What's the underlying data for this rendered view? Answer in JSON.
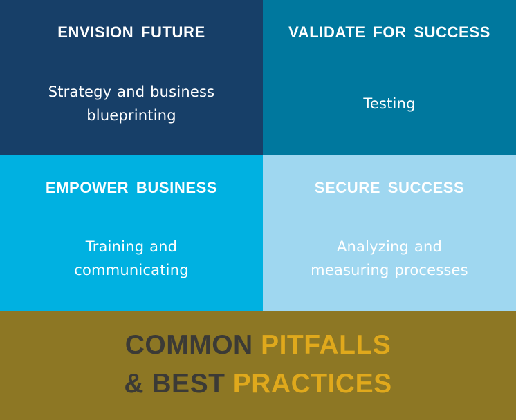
{
  "quadrants": [
    {
      "title": "ENVISION  FUTURE",
      "lines": [
        "Strategy and business",
        "blueprinting"
      ],
      "color": "#173f68"
    },
    {
      "title": "VALIDATE FOR  SUCCESS",
      "lines": [
        "Testing"
      ],
      "color": "#00789e"
    },
    {
      "title": "EMPOWER  BUSINESS",
      "lines": [
        "Training  and",
        "communicating"
      ],
      "color": "#00b1e1"
    },
    {
      "title": "SECURE SUCCESS",
      "lines": [
        "Analyzing and",
        "measuring processes"
      ],
      "color": "#9fd7f0"
    }
  ],
  "banner": {
    "line1": {
      "dark": "COMMON",
      "gold": "PITFALLS"
    },
    "line2": {
      "dark": "& BEST",
      "gold": "PRACTICES"
    },
    "background": "#8d7724",
    "dark_color": "#3b3a36",
    "gold_color": "#e0a91c"
  }
}
